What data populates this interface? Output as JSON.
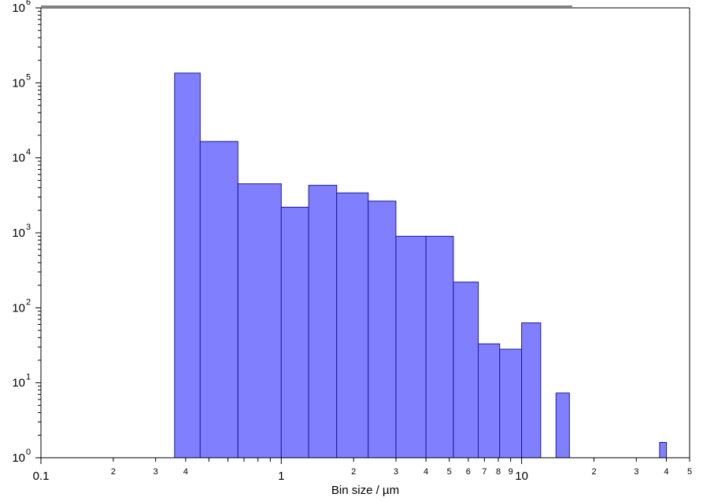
{
  "chart_data": {
    "type": "bar",
    "title": "",
    "xlabel": "Bin size / µm",
    "ylabel": "",
    "x_scale": "log",
    "y_scale": "log",
    "xlim": [
      0.1,
      50
    ],
    "ylim": [
      1,
      1000000
    ],
    "grid": false,
    "legend": "none",
    "bar_color": "#8080ff",
    "bar_edge_color": "#1a1a9a",
    "x_major_tick_labels": [
      "0.1",
      "1",
      "10"
    ],
    "x_minor_tick_labels": [
      "2",
      "3",
      "4",
      "5",
      "6",
      "7",
      "8",
      "9"
    ],
    "y_major_tick_labels": [
      {
        "base": "10",
        "exp": "0"
      },
      {
        "base": "10",
        "exp": "1"
      },
      {
        "base": "10",
        "exp": "2"
      },
      {
        "base": "10",
        "exp": "3"
      },
      {
        "base": "10",
        "exp": "4"
      },
      {
        "base": "10",
        "exp": "5"
      },
      {
        "base": "10",
        "exp": "6"
      }
    ],
    "bins": [
      {
        "x0": 0.36,
        "x1": 0.46,
        "value": 135000
      },
      {
        "x0": 0.46,
        "x1": 0.66,
        "value": 16500
      },
      {
        "x0": 0.66,
        "x1": 1.0,
        "value": 4500
      },
      {
        "x0": 1.0,
        "x1": 1.3,
        "value": 2200
      },
      {
        "x0": 1.3,
        "x1": 1.7,
        "value": 4300
      },
      {
        "x0": 1.7,
        "x1": 2.3,
        "value": 3400
      },
      {
        "x0": 2.3,
        "x1": 3.0,
        "value": 2650
      },
      {
        "x0": 3.0,
        "x1": 4.0,
        "value": 900
      },
      {
        "x0": 4.0,
        "x1": 5.2,
        "value": 900
      },
      {
        "x0": 5.2,
        "x1": 6.6,
        "value": 220
      },
      {
        "x0": 6.6,
        "x1": 8.1,
        "value": 33
      },
      {
        "x0": 8.1,
        "x1": 10.0,
        "value": 28
      },
      {
        "x0": 10.0,
        "x1": 12.0,
        "value": 63
      },
      {
        "x0": 13.9,
        "x1": 15.8,
        "value": 7.3
      },
      {
        "x0": 37.5,
        "x1": 40.0,
        "value": 1.6
      }
    ]
  }
}
